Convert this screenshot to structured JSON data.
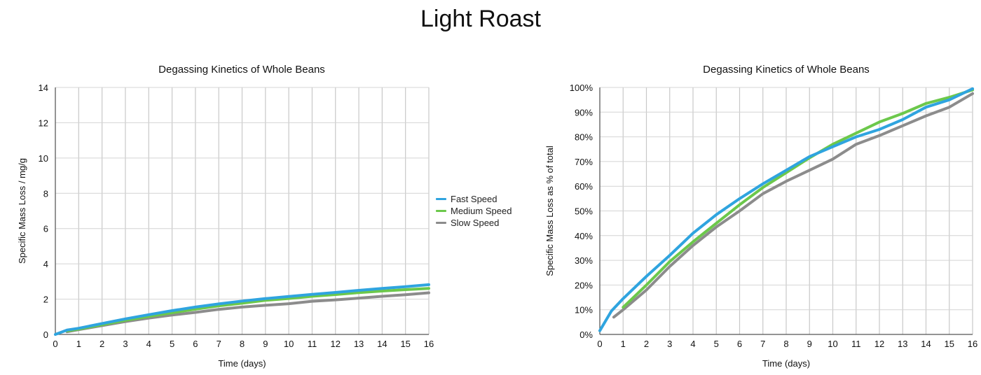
{
  "page_title": "Light Roast",
  "legend": [
    {
      "name": "Fast Speed",
      "color": "#2FA4DF"
    },
    {
      "name": "Medium Speed",
      "color": "#6CC84B"
    },
    {
      "name": "Slow Speed",
      "color": "#8C8C8C"
    }
  ],
  "chart_data": [
    {
      "type": "line",
      "title": "Degassing Kinetics of Whole Beans",
      "xlabel": "Time (days)",
      "ylabel": "Specific Mass Loss / mg/g",
      "xlim": [
        0,
        16
      ],
      "ylim": [
        0,
        14
      ],
      "x_ticks": [
        0,
        1,
        2,
        3,
        4,
        5,
        6,
        7,
        8,
        9,
        10,
        11,
        12,
        13,
        14,
        15,
        16
      ],
      "x_tick_labels": [
        "0",
        "1",
        "2",
        "3",
        "4",
        "5",
        "6",
        "7",
        "8",
        "9",
        "10",
        "11",
        "12",
        "13",
        "14",
        "15",
        "16"
      ],
      "y_ticks": [
        0,
        2,
        4,
        6,
        8,
        10,
        12,
        14
      ],
      "y_tick_labels": [
        "0",
        "2",
        "4",
        "6",
        "8",
        "10",
        "12",
        "14"
      ],
      "grid": true,
      "legend_position": "right",
      "series": [
        {
          "name": "Fast Speed",
          "color": "#2FA4DF",
          "x": [
            0,
            0.5,
            1,
            2,
            3,
            4,
            5,
            6,
            7,
            8,
            9,
            10,
            11,
            12,
            13,
            14,
            15,
            16
          ],
          "y": [
            0,
            0.25,
            0.35,
            0.62,
            0.88,
            1.12,
            1.35,
            1.55,
            1.73,
            1.89,
            2.03,
            2.15,
            2.27,
            2.38,
            2.5,
            2.61,
            2.71,
            2.82
          ]
        },
        {
          "name": "Medium Speed",
          "color": "#6CC84B",
          "x": [
            0.5,
            1,
            2,
            3,
            4,
            5,
            6,
            7,
            8,
            9,
            10,
            11,
            12,
            13,
            14,
            15,
            16
          ],
          "y": [
            0.2,
            0.3,
            0.55,
            0.8,
            1.02,
            1.23,
            1.43,
            1.62,
            1.77,
            1.93,
            2.04,
            2.16,
            2.26,
            2.37,
            2.46,
            2.54,
            2.61
          ]
        },
        {
          "name": "Slow Speed",
          "color": "#8C8C8C",
          "x": [
            0.5,
            1,
            2,
            3,
            4,
            5,
            6,
            7,
            8,
            9,
            10,
            11,
            12,
            13,
            14,
            15,
            16
          ],
          "y": [
            0.15,
            0.27,
            0.5,
            0.73,
            0.93,
            1.1,
            1.25,
            1.42,
            1.55,
            1.65,
            1.74,
            1.88,
            1.96,
            2.06,
            2.16,
            2.25,
            2.36
          ]
        }
      ]
    },
    {
      "type": "line",
      "title": "Degassing Kinetics of Whole Beans",
      "xlabel": "Time (days)",
      "ylabel": "Specific Mass Loss as % of total",
      "xlim": [
        0,
        16
      ],
      "ylim": [
        0,
        100
      ],
      "x_ticks": [
        0,
        1,
        2,
        3,
        4,
        5,
        6,
        7,
        8,
        9,
        10,
        11,
        12,
        13,
        14,
        15,
        16
      ],
      "x_tick_labels": [
        "0",
        "1",
        "2",
        "3",
        "4",
        "5",
        "6",
        "7",
        "8",
        "9",
        "10",
        "11",
        "12",
        "13",
        "14",
        "15",
        "16"
      ],
      "y_ticks": [
        0,
        10,
        20,
        30,
        40,
        50,
        60,
        70,
        80,
        90,
        100
      ],
      "y_tick_labels": [
        "0%",
        "10%",
        "20%",
        "30%",
        "40%",
        "50%",
        "60%",
        "70%",
        "80%",
        "90%",
        "100%"
      ],
      "grid": true,
      "series": [
        {
          "name": "Fast Speed",
          "color": "#2FA4DF",
          "x": [
            0,
            0.5,
            1,
            2,
            3,
            4,
            5,
            6,
            7,
            8,
            9,
            10,
            11,
            12,
            13,
            14,
            15,
            16
          ],
          "y": [
            1.5,
            9.5,
            14.5,
            23.5,
            32,
            41,
            48.5,
            55,
            61,
            66.5,
            72,
            76,
            80,
            83,
            87,
            92,
            95,
            99.5
          ]
        },
        {
          "name": "Medium Speed",
          "color": "#6CC84B",
          "x": [
            1,
            2,
            3,
            4,
            5,
            6,
            7,
            8,
            9,
            10,
            11,
            12,
            13,
            14,
            15,
            16
          ],
          "y": [
            11,
            20,
            29.5,
            37.5,
            45,
            52.5,
            59.5,
            65.5,
            71.5,
            77,
            81.5,
            86,
            89.5,
            93.5,
            96,
            99
          ]
        },
        {
          "name": "Slow Speed",
          "color": "#8C8C8C",
          "x": [
            0.6,
            1,
            2,
            3,
            4,
            5,
            6,
            7,
            8,
            9,
            10,
            11,
            12,
            13,
            14,
            15,
            16
          ],
          "y": [
            7,
            10,
            18,
            27.5,
            36,
            43.5,
            50,
            57,
            62,
            66.5,
            71,
            77,
            80.5,
            84.5,
            88.5,
            92,
            97.5
          ]
        }
      ]
    }
  ]
}
